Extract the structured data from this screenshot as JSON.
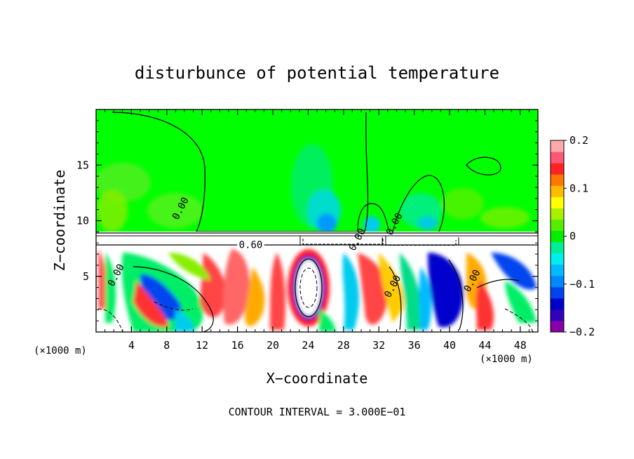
{
  "chart_data": {
    "type": "heatmap",
    "title": "disturbunce of potential temperature",
    "xlabel": "X−coordinate",
    "ylabel": "Z−coordinate",
    "x_unit": "(×1000 m)",
    "z_unit": "(×1000 m)",
    "xlim": [
      0,
      50
    ],
    "ylim": [
      0,
      20
    ],
    "x_ticks": [
      4,
      8,
      12,
      16,
      20,
      24,
      28,
      32,
      36,
      40,
      44,
      48
    ],
    "x_tick_labels": [
      "4",
      "8",
      "12",
      "16",
      "20",
      "24",
      "28",
      "32",
      "36",
      "40",
      "44",
      "48"
    ],
    "y_ticks": [
      5,
      10,
      15
    ],
    "y_tick_labels": [
      "5",
      "10",
      "15"
    ],
    "colorbar": {
      "min": -0.2,
      "max": 0.2,
      "ticks": [
        0.2,
        0.1,
        0,
        -0.1,
        -0.2
      ],
      "tick_labels": [
        "0.2",
        "0.1",
        "0",
        "−0.1",
        "−0.2"
      ],
      "colors": [
        "#8800aa",
        "#3300bb",
        "#0000cc",
        "#0044ee",
        "#0088ff",
        "#00bbff",
        "#00eeee",
        "#00ee99",
        "#00ee00",
        "#55ee00",
        "#aaee00",
        "#ffff00",
        "#ffbb00",
        "#ff7700",
        "#ff2222",
        "#ff5577",
        "#ffaaaa"
      ]
    },
    "contour_labels": [
      {
        "text": "0.00",
        "x": 9.8,
        "z": 11.0
      },
      {
        "text": "0.00",
        "x": 34.0,
        "z": 9.6
      },
      {
        "text": "0.00",
        "x": 29.8,
        "z": 8.2
      },
      {
        "text": "0.60",
        "x": 17.5,
        "z": 7.6
      },
      {
        "text": "0.00",
        "x": 2.5,
        "z": 5.0
      },
      {
        "text": "0.00",
        "x": 33.8,
        "z": 4.0
      },
      {
        "text": "0.00",
        "x": 42.8,
        "z": 4.5
      }
    ],
    "contour_interval": "CONTOUR INTERVAL = 3.000E−01",
    "colors": {
      "background": "#00ff00",
      "frame": "#000000"
    }
  }
}
